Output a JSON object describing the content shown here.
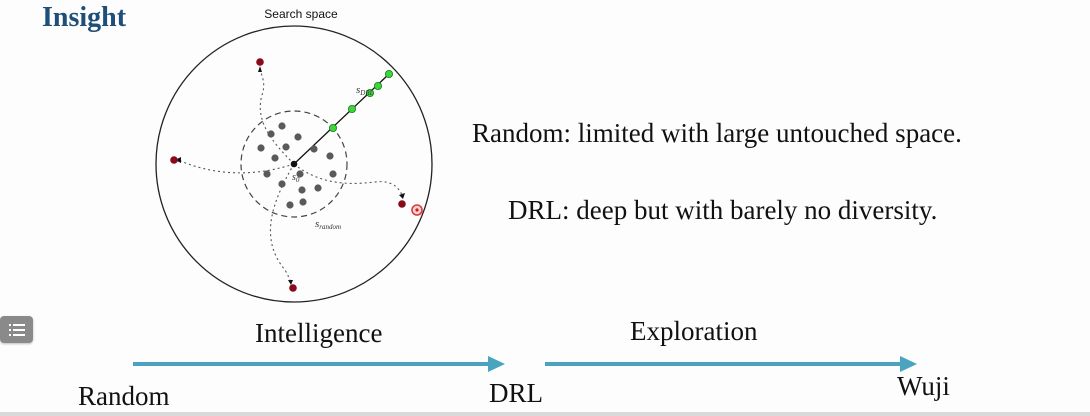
{
  "slide": {
    "title": "Insight",
    "figure_caption": "Search space",
    "notes": {
      "random": "Random: limited with large untouched space.",
      "drl": "DRL: deep but with barely no diversity."
    },
    "diagram_labels": {
      "s_drl": "s",
      "s_drl_sub": "DRL",
      "s_0": "s",
      "s_0_sub": "0",
      "s_random": "s",
      "s_random_sub": "random"
    },
    "timeline": {
      "intelligence": "Intelligence",
      "exploration": "Exploration",
      "random": "Random",
      "drl": "DRL",
      "wuji": "Wuji"
    }
  },
  "colors": {
    "title": "#1f4e79",
    "arrow": "#4aa3bf",
    "drl_point": "#39d939",
    "endpoint": "#8b0a1a",
    "cloud_point": "#5a5a5a"
  },
  "icons": {
    "menu": "list-menu-icon"
  }
}
